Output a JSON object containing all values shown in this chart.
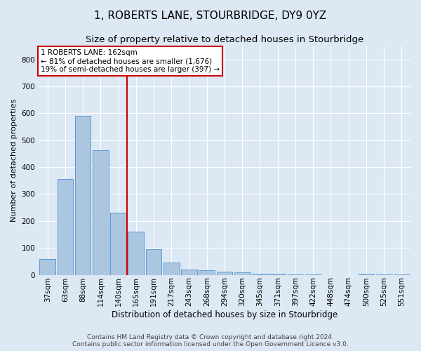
{
  "title": "1, ROBERTS LANE, STOURBRIDGE, DY9 0YZ",
  "subtitle": "Size of property relative to detached houses in Stourbridge",
  "xlabel": "Distribution of detached houses by size in Stourbridge",
  "ylabel": "Number of detached properties",
  "categories": [
    "37sqm",
    "63sqm",
    "88sqm",
    "114sqm",
    "140sqm",
    "165sqm",
    "191sqm",
    "217sqm",
    "243sqm",
    "268sqm",
    "294sqm",
    "320sqm",
    "345sqm",
    "371sqm",
    "397sqm",
    "422sqm",
    "448sqm",
    "474sqm",
    "500sqm",
    "525sqm",
    "551sqm"
  ],
  "values": [
    58,
    356,
    590,
    463,
    232,
    160,
    94,
    46,
    20,
    17,
    13,
    8,
    4,
    3,
    2,
    1,
    0,
    0,
    4,
    1,
    2
  ],
  "bar_color": "#adc6e0",
  "bar_edge_color": "#5b9bd5",
  "background_color": "#dde8f5",
  "grid_color": "#ffffff",
  "property_line_x": 4.5,
  "annotation_line1": "1 ROBERTS LANE: 162sqm",
  "annotation_line2": "← 81% of detached houses are smaller (1,676)",
  "annotation_line3": "19% of semi-detached houses are larger (397) →",
  "annotation_box_color": "#ffffff",
  "annotation_border_color": "#cc0000",
  "vline_color": "#cc0000",
  "footer_line1": "Contains HM Land Registry data © Crown copyright and database right 2024.",
  "footer_line2": "Contains public sector information licensed under the Open Government Licence v3.0.",
  "ylim": [
    0,
    850
  ],
  "yticks": [
    0,
    100,
    200,
    300,
    400,
    500,
    600,
    700,
    800
  ],
  "title_fontsize": 11,
  "subtitle_fontsize": 9.5,
  "xlabel_fontsize": 8.5,
  "ylabel_fontsize": 8,
  "tick_fontsize": 7.5,
  "footer_fontsize": 6.5,
  "annotation_fontsize": 7.5
}
